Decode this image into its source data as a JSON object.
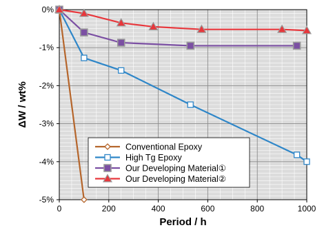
{
  "chart_data": {
    "type": "line",
    "title": "",
    "xlabel": "Period / h",
    "ylabel": "ΔW / wt%",
    "xlim": [
      0,
      1000
    ],
    "ylim": [
      -5,
      0
    ],
    "x_ticks": [
      0,
      200,
      400,
      600,
      800,
      1000
    ],
    "x_tick_labels": [
      "0",
      "200",
      "400",
      "600",
      "800",
      "1000"
    ],
    "y_ticks": [
      0,
      -1,
      -2,
      -3,
      -4,
      -5
    ],
    "y_tick_labels": [
      "0%",
      "-1%",
      "-2%",
      "-3%",
      "-4%",
      "-5%"
    ],
    "grid": true,
    "minor_grid": true,
    "legend_position": "bottom-center",
    "series": [
      {
        "name": "Conventional Epoxy",
        "color": "#b5652b",
        "marker": "diamond",
        "x": [
          0,
          100
        ],
        "y": [
          0,
          -5.0
        ]
      },
      {
        "name": "High Tg Epoxy",
        "color": "#2e86c8",
        "marker": "square-open",
        "x": [
          0,
          100,
          250,
          530,
          960,
          1000
        ],
        "y": [
          0,
          -1.27,
          -1.6,
          -2.5,
          -3.82,
          -4.0
        ]
      },
      {
        "name": "Our Developing Material①",
        "color": "#7b4fa3",
        "marker": "square-filled",
        "x": [
          0,
          100,
          250,
          530,
          960
        ],
        "y": [
          0,
          -0.6,
          -0.87,
          -0.95,
          -0.95
        ]
      },
      {
        "name": "Our Developing Material②",
        "color": "#e8363b",
        "marker": "triangle",
        "x": [
          0,
          100,
          250,
          380,
          575,
          900,
          1000
        ],
        "y": [
          0,
          -0.1,
          -0.35,
          -0.45,
          -0.52,
          -0.52,
          -0.55
        ]
      }
    ]
  }
}
